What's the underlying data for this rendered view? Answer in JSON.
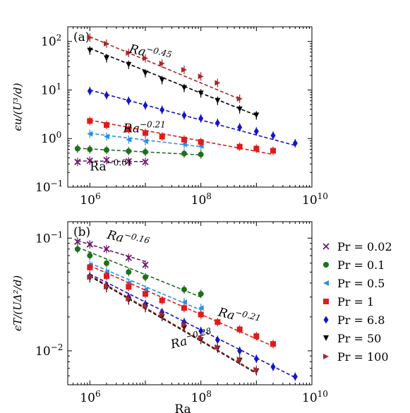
{
  "chart_data": [
    {
      "panel": "(a)",
      "type": "scatter",
      "xscale": "log",
      "yscale": "log",
      "xlim": [
        400000,
        10000000000
      ],
      "ylim": [
        0.1,
        200
      ],
      "xticks": [
        "10^6",
        "10^8",
        "10^10"
      ],
      "yticks": [
        "10^-1",
        "10^0",
        "10^1",
        "10^2"
      ],
      "ylabel": "ϵu/(U³/d)",
      "xlabel": "",
      "annotations": [
        {
          "text_base": "Ra",
          "text_exp": "−0.45",
          "x": 5000000,
          "y": 60,
          "rotate": 14,
          "italic": true
        },
        {
          "text_base": "Ra",
          "text_exp": "−0.21",
          "x": 4000000,
          "y": 1.35,
          "rotate": 0,
          "italic": true
        },
        {
          "text_base": "Ra",
          "text_exp": "−0.01",
          "x": 1000000,
          "y": 0.22,
          "rotate": 0,
          "italic": false
        }
      ],
      "series": [
        {
          "name": "Pr = 0.02",
          "color": "#6a1b6a",
          "marker": "x",
          "x": [
            600000,
            1000000,
            2000000,
            5000000,
            10000000
          ],
          "y": [
            0.33,
            0.35,
            0.36,
            0.34,
            0.33
          ],
          "fit": {
            "x0": 600000,
            "x1": 10000000,
            "y0": 0.345,
            "y1": 0.335
          }
        },
        {
          "name": "Pr = 0.1",
          "color": "#1f6e1f",
          "marker": "o",
          "x": [
            600000,
            1000000,
            2000000,
            5000000,
            10000000,
            50000000,
            100000000
          ],
          "y": [
            0.62,
            0.6,
            0.58,
            0.55,
            0.53,
            0.49,
            0.47
          ],
          "fit": {
            "x0": 600000,
            "x1": 100000000,
            "y0": 0.63,
            "y1": 0.46
          }
        },
        {
          "name": "Pr = 0.5",
          "color": "#2f8fe0",
          "marker": "<",
          "x": [
            1000000,
            2000000,
            5000000,
            10000000,
            50000000,
            100000000
          ],
          "y": [
            1.25,
            1.1,
            0.95,
            0.88,
            0.76,
            0.7
          ],
          "fit": {
            "x0": 1000000,
            "x1": 100000000,
            "y0": 1.28,
            "y1": 0.68
          }
        },
        {
          "name": "Pr = 1",
          "color": "#e01b1b",
          "marker": "s",
          "x": [
            1000000,
            2000000,
            5000000,
            10000000,
            20000000,
            50000000,
            100000000,
            500000000,
            1000000000,
            2000000000
          ],
          "y": [
            2.3,
            1.9,
            1.55,
            1.3,
            1.1,
            0.95,
            0.85,
            0.68,
            0.62,
            0.56
          ],
          "fit": {
            "x0": 1000000,
            "x1": 2000000000,
            "y0": 2.4,
            "y1": 0.47
          }
        },
        {
          "name": "Pr = 6.8",
          "color": "#1414c8",
          "marker": "d",
          "x": [
            1000000,
            2000000,
            5000000,
            10000000,
            20000000,
            50000000,
            100000000,
            200000000,
            500000000,
            1000000000,
            2000000000,
            5000000000
          ],
          "y": [
            9.5,
            7.8,
            6.0,
            4.8,
            3.9,
            3.0,
            2.6,
            2.1,
            1.7,
            1.4,
            1.15,
            0.8
          ],
          "fit": {
            "x0": 1000000,
            "x1": 5000000000,
            "y0": 10,
            "y1": 0.72
          }
        },
        {
          "name": "Pr = 50",
          "color": "#000000",
          "marker": "v",
          "x": [
            1000000,
            2000000,
            5000000,
            10000000,
            20000000,
            50000000,
            100000000,
            200000000,
            500000000,
            1000000000
          ],
          "y": [
            65,
            45,
            33,
            22,
            16,
            11,
            8.5,
            6.0,
            4.0,
            3.0
          ],
          "fit": {
            "x0": 1000000,
            "x1": 1000000000,
            "y0": 72,
            "y1": 3.0
          }
        },
        {
          "name": "Pr = 100",
          "color": "#a52a2a",
          "marker": ">",
          "x": [
            1000000,
            2000000,
            5000000,
            10000000,
            20000000,
            50000000,
            100000000,
            200000000,
            500000000
          ],
          "y": [
            120,
            90,
            58,
            45,
            35,
            26,
            19,
            14,
            6.6
          ],
          "fit": {
            "x0": 1000000,
            "x1": 500000000,
            "y0": 125,
            "y1": 6.5
          }
        }
      ]
    },
    {
      "panel": "(b)",
      "type": "scatter",
      "xscale": "log",
      "yscale": "log",
      "xlim": [
        400000,
        10000000000
      ],
      "ylim": [
        0.005,
        0.14
      ],
      "xticks": [
        "10^6",
        "10^8",
        "10^10"
      ],
      "yticks": [
        "10^-2",
        "10^-1"
      ],
      "ylabel": "ϵT/(UΔ²/d)",
      "xlabel": "Ra",
      "annotations": [
        {
          "text_base": "Ra",
          "text_exp": "−0.16",
          "x": 2000000,
          "y": 0.1,
          "rotate": 14,
          "italic": true
        },
        {
          "text_base": "Ra",
          "text_exp": "−0.21",
          "x": 200000000,
          "y": 0.0205,
          "rotate": 14,
          "italic": true
        },
        {
          "text_base": "Ra",
          "text_exp": "−0.28",
          "x": 30000000,
          "y": 0.0105,
          "rotate": -14,
          "italic": true
        }
      ],
      "series": [
        {
          "name": "Pr = 0.02",
          "color": "#6a1b6a",
          "marker": "x",
          "x": [
            600000,
            1000000,
            2000000,
            5000000,
            10000000
          ],
          "y": [
            0.093,
            0.088,
            0.08,
            0.067,
            0.058
          ],
          "fit": {
            "x0": 600000,
            "x1": 10000000,
            "y0": 0.095,
            "y1": 0.062
          }
        },
        {
          "name": "Pr = 0.1",
          "color": "#1f6e1f",
          "marker": "o",
          "x": [
            600000,
            1000000,
            2000000,
            5000000,
            10000000,
            50000000,
            100000000
          ],
          "y": [
            0.08,
            0.07,
            0.06,
            0.05,
            0.045,
            0.035,
            0.032
          ],
          "fit": {
            "x0": 600000,
            "x1": 100000000,
            "y0": 0.083,
            "y1": 0.03
          }
        },
        {
          "name": "Pr = 0.5",
          "color": "#2f8fe0",
          "marker": "<",
          "x": [
            1000000,
            2000000,
            5000000,
            10000000,
            50000000,
            100000000
          ],
          "y": [
            0.058,
            0.05,
            0.04,
            0.035,
            0.027,
            0.024
          ],
          "fit": {
            "x0": 1000000,
            "x1": 100000000,
            "y0": 0.06,
            "y1": 0.023
          }
        },
        {
          "name": "Pr = 1",
          "color": "#e01b1b",
          "marker": "s",
          "x": [
            1000000,
            2000000,
            5000000,
            10000000,
            20000000,
            50000000,
            100000000,
            200000000,
            500000000,
            1000000000,
            2000000000
          ],
          "y": [
            0.055,
            0.046,
            0.037,
            0.032,
            0.028,
            0.024,
            0.021,
            0.018,
            0.0155,
            0.0135,
            0.0115
          ],
          "fit": {
            "x0": 1000000,
            "x1": 2000000000,
            "y0": 0.057,
            "y1": 0.011
          }
        },
        {
          "name": "Pr = 6.8",
          "color": "#1414c8",
          "marker": "d",
          "x": [
            1000000,
            2000000,
            5000000,
            10000000,
            20000000,
            50000000,
            100000000,
            200000000,
            500000000,
            1000000000,
            2000000000,
            5000000000
          ],
          "y": [
            0.046,
            0.038,
            0.03,
            0.026,
            0.022,
            0.018,
            0.015,
            0.0125,
            0.01,
            0.0085,
            0.0072,
            0.0059
          ],
          "fit": {
            "x0": 1000000,
            "x1": 5000000000,
            "y0": 0.048,
            "y1": 0.0058
          }
        },
        {
          "name": "Pr = 50",
          "color": "#000000",
          "marker": "v",
          "x": [
            1000000,
            2000000,
            5000000,
            10000000,
            20000000,
            50000000,
            100000000,
            200000000,
            500000000,
            1000000000
          ],
          "y": [
            0.044,
            0.036,
            0.028,
            0.024,
            0.02,
            0.016,
            0.0125,
            0.0105,
            0.0082,
            0.0066
          ],
          "fit": {
            "x0": 1000000,
            "x1": 1000000000,
            "y0": 0.046,
            "y1": 0.0063
          }
        },
        {
          "name": "Pr = 100",
          "color": "#a52a2a",
          "marker": ">",
          "x": [
            1000000,
            2000000,
            5000000,
            10000000,
            20000000,
            50000000,
            100000000,
            200000000,
            500000000,
            1000000000
          ],
          "y": [
            0.045,
            0.037,
            0.029,
            0.025,
            0.021,
            0.017,
            0.013,
            0.0108,
            0.0084,
            0.0068
          ],
          "fit": {
            "x0": 1000000,
            "x1": 1000000000,
            "y0": 0.047,
            "y1": 0.0064
          }
        }
      ]
    }
  ],
  "legend": {
    "placement": "right of panel (b)",
    "entries": [
      {
        "label": "Pr = 0.02",
        "color": "#6a1b6a",
        "marker": "x"
      },
      {
        "label": "Pr = 0.1",
        "color": "#1f6e1f",
        "marker": "o"
      },
      {
        "label": "Pr = 0.5",
        "color": "#2f8fe0",
        "marker": "<"
      },
      {
        "label": "Pr = 1",
        "color": "#e01b1b",
        "marker": "s"
      },
      {
        "label": "Pr = 6.8",
        "color": "#1414c8",
        "marker": "d"
      },
      {
        "label": "Pr = 50",
        "color": "#000000",
        "marker": "v"
      },
      {
        "label": "Pr = 100",
        "color": "#a52a2a",
        "marker": ">"
      }
    ]
  }
}
